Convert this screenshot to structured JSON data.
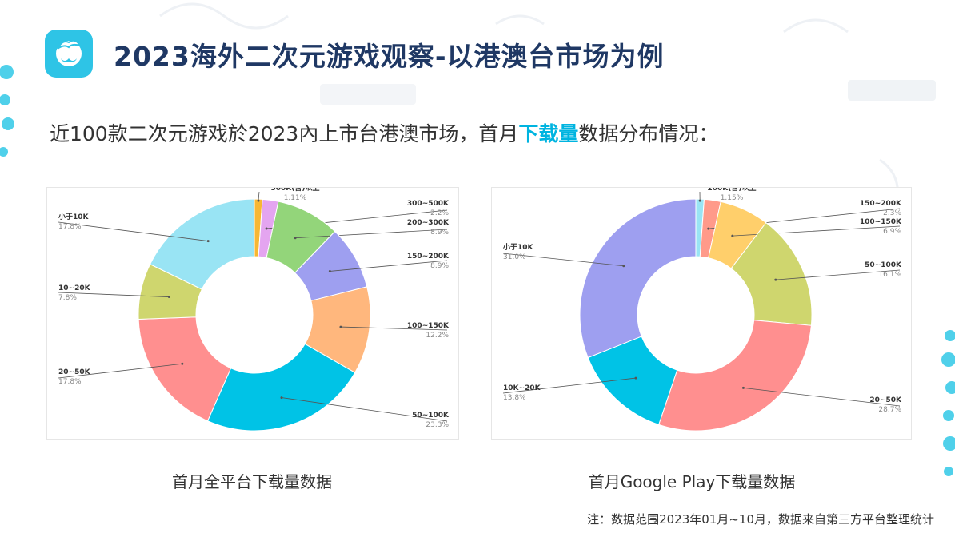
{
  "header": {
    "title": "2023海外二次元游戏观察-以港澳台市场为例",
    "logo_icon": "mascot-face-icon"
  },
  "subtitle": {
    "before": "近100款二次元游戏於2023內上市台港澳市场，首月",
    "highlight": "下载量",
    "after": "数据分布情况："
  },
  "colors": {
    "title": "#1f3864",
    "accent": "#00b4e0",
    "logo_bg": "#2ec4e6"
  },
  "chart_data": [
    {
      "type": "pie",
      "variant": "donut",
      "title": "首月全平台下载量数据",
      "slices": [
        {
          "label": "500K(含)以上",
          "value": 1.11,
          "display": "1.11%",
          "color": "#f7b733"
        },
        {
          "label": "300~500K",
          "value": 2.2,
          "display": "2.2%",
          "color": "#e4a5f0"
        },
        {
          "label": "200~300K",
          "value": 8.9,
          "display": "8.9%",
          "color": "#93d57a"
        },
        {
          "label": "150~200K",
          "value": 8.9,
          "display": "8.9%",
          "color": "#9e9ff0"
        },
        {
          "label": "100~150K",
          "value": 12.2,
          "display": "12.2%",
          "color": "#ffb77d"
        },
        {
          "label": "50~100K",
          "value": 23.3,
          "display": "23.3%",
          "color": "#00c3e6"
        },
        {
          "label": "20~50K",
          "value": 17.8,
          "display": "17.8%",
          "color": "#ff8f8f"
        },
        {
          "label": "10~20K",
          "value": 7.8,
          "display": "7.8%",
          "color": "#cfd66e"
        },
        {
          "label": "小于10K",
          "value": 17.8,
          "display": "17.8%",
          "color": "#99e4f4"
        }
      ]
    },
    {
      "type": "pie",
      "variant": "donut",
      "title": "首月Google Play下载量数据",
      "slices": [
        {
          "label": "200K(含)以上",
          "value": 1.15,
          "display": "1.15%",
          "color": "#99e4f4"
        },
        {
          "label": "150~200K",
          "value": 2.3,
          "display": "2.3%",
          "color": "#ff9a8a"
        },
        {
          "label": "100~150K",
          "value": 6.9,
          "display": "6.9%",
          "color": "#ffcf6b"
        },
        {
          "label": "50~100K",
          "value": 16.1,
          "display": "16.1%",
          "color": "#cfd66e"
        },
        {
          "label": "20~50K",
          "value": 28.7,
          "display": "28.7%",
          "color": "#ff8f8f"
        },
        {
          "label": "10K~20K",
          "value": 13.8,
          "display": "13.8%",
          "color": "#00c3e6"
        },
        {
          "label": "小于10K",
          "value": 31.0,
          "display": "31.0%",
          "color": "#9e9ff0"
        }
      ]
    }
  ],
  "footnote": "注：数据范围2023年01月~10月，数据来自第三方平台整理统计"
}
